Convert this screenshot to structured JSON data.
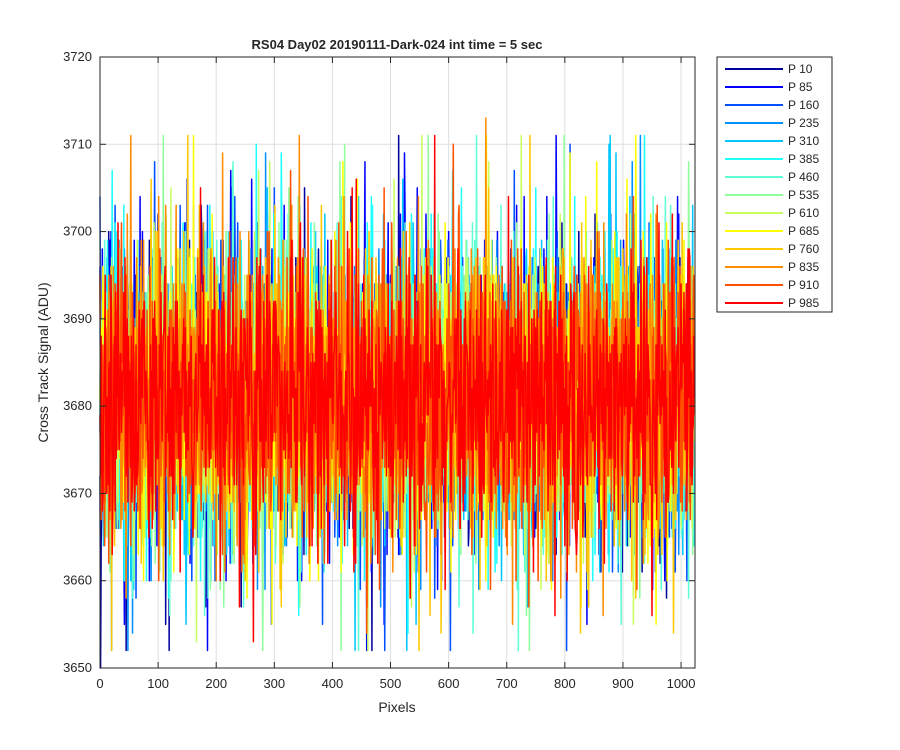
{
  "chart_data": {
    "type": "line",
    "title": "RS04 Day02 20190111-Dark-024 int time = 5 sec",
    "xlabel": "Pixels",
    "ylabel": "Cross Track Signal (ADU)",
    "xlim": [
      0,
      1024
    ],
    "ylim": [
      3650,
      3720
    ],
    "xticks": [
      0,
      100,
      200,
      300,
      400,
      500,
      600,
      700,
      800,
      900,
      1000
    ],
    "yticks": [
      3650,
      3660,
      3670,
      3680,
      3690,
      3700,
      3710,
      3720
    ],
    "grid": true,
    "legend_position": "outside-top-right",
    "n_points_per_series": 1024,
    "typical_mean": 3681,
    "typical_band": [
      3664,
      3698
    ],
    "series": [
      {
        "name": "P 10",
        "color": "#00009f",
        "seed": 11
      },
      {
        "name": "P 85",
        "color": "#0000ff",
        "seed": 23
      },
      {
        "name": "P 160",
        "color": "#0050ff",
        "seed": 37
      },
      {
        "name": "P 235",
        "color": "#0090ff",
        "seed": 41
      },
      {
        "name": "P 310",
        "color": "#00c8ff",
        "seed": 53
      },
      {
        "name": "P 385",
        "color": "#1effff",
        "seed": 67
      },
      {
        "name": "P 460",
        "color": "#5effd5",
        "seed": 71
      },
      {
        "name": "P 535",
        "color": "#8fff9a",
        "seed": 83
      },
      {
        "name": "P 610",
        "color": "#c8ff5e",
        "seed": 97
      },
      {
        "name": "P 685",
        "color": "#ffff00",
        "seed": 101
      },
      {
        "name": "P 760",
        "color": "#ffc800",
        "seed": 113
      },
      {
        "name": "P 835",
        "color": "#ff8c00",
        "seed": 127
      },
      {
        "name": "P 910",
        "color": "#ff5000",
        "seed": 131
      },
      {
        "name": "P 985",
        "color": "#ff0000",
        "seed": 139
      }
    ],
    "notable_points": [
      {
        "series": "P 10",
        "x": 1,
        "y": 3650
      },
      {
        "series": "P 235",
        "x": 20,
        "y": 3652
      },
      {
        "series": "P 835",
        "x": 664,
        "y": 3713
      },
      {
        "series": "P 160",
        "x": 94,
        "y": 3708
      },
      {
        "series": "P 685",
        "x": 418,
        "y": 3708
      },
      {
        "series": "P 910",
        "x": 328,
        "y": 3707
      },
      {
        "series": "P 760",
        "x": 88,
        "y": 3706
      },
      {
        "series": "P 610",
        "x": 292,
        "y": 3708
      },
      {
        "series": "P 685",
        "x": 855,
        "y": 3708
      },
      {
        "series": "P 310",
        "x": 1020,
        "y": 3703
      },
      {
        "series": "P 835",
        "x": 710,
        "y": 3655
      },
      {
        "series": "P 610",
        "x": 918,
        "y": 3655
      },
      {
        "series": "P 985",
        "x": 950,
        "y": 3656
      },
      {
        "series": "P 160",
        "x": 1010,
        "y": 3660
      }
    ]
  }
}
